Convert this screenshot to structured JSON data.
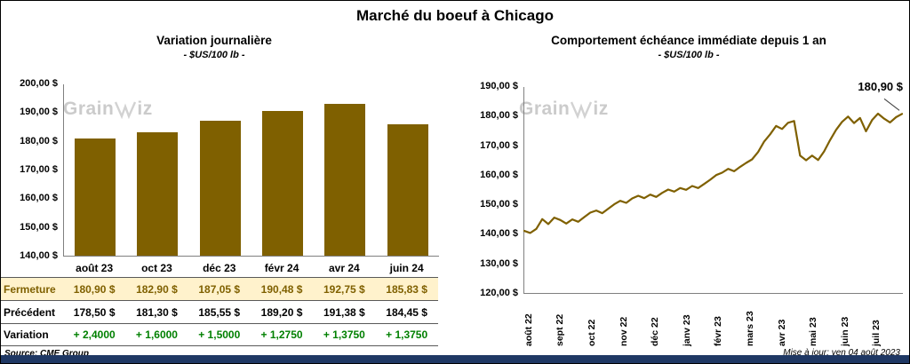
{
  "page": {
    "title": "Marché du boeuf à Chicago",
    "source": "Source: CME Group",
    "updated": "Mise à jour: ven 04 août 2023"
  },
  "watermark": {
    "prefix": "Grain",
    "suffix": "iz"
  },
  "colors": {
    "accent": "#7F6000",
    "fermeture_bg": "#FFF2CC",
    "green": "#008000",
    "band": "#1F3864"
  },
  "chart_data": [
    {
      "type": "bar",
      "title": "Variation journalière",
      "subtitle": "- $US/100 lb -",
      "categories": [
        "août 23",
        "oct 23",
        "déc 23",
        "févr 24",
        "avr 24",
        "juin 24"
      ],
      "values": [
        180.9,
        182.9,
        187.05,
        190.48,
        192.75,
        185.83
      ],
      "ylim": [
        140,
        200
      ],
      "ytick_labels": [
        "200,00 $",
        "190,00 $",
        "180,00 $",
        "170,00 $",
        "160,00 $",
        "150,00 $",
        "140,00 $"
      ],
      "legend": "none",
      "grid": false,
      "table": {
        "rows": [
          {
            "label": "Fermeture",
            "values": [
              "180,90 $",
              "182,90 $",
              "187,05 $",
              "190,48 $",
              "192,75 $",
              "185,83 $"
            ]
          },
          {
            "label": "Précédent",
            "values": [
              "178,50 $",
              "181,30 $",
              "185,55 $",
              "189,20 $",
              "191,38 $",
              "184,45 $"
            ]
          },
          {
            "label": "Variation",
            "values": [
              "+ 2,4000",
              "+ 1,6000",
              "+ 1,5000",
              "+ 1,2750",
              "+ 1,3750",
              "+ 1,3750"
            ]
          }
        ]
      }
    },
    {
      "type": "line",
      "title": "Comportement échéance immédiate depuis 1 an",
      "subtitle": "- $US/100 lb -",
      "x_labels": [
        "août 22",
        "sept 22",
        "oct 22",
        "nov 22",
        "déc 22",
        "janv 23",
        "févr 23",
        "mars 23",
        "avr 23",
        "mai 23",
        "juin 23",
        "juil 23"
      ],
      "values": [
        141.3,
        140.6,
        142.0,
        145.3,
        143.6,
        145.8,
        145.0,
        143.8,
        145.2,
        144.4,
        146.0,
        147.5,
        148.2,
        147.3,
        148.8,
        150.3,
        151.5,
        150.8,
        152.3,
        153.2,
        152.4,
        153.6,
        152.8,
        154.2,
        155.3,
        154.6,
        155.8,
        155.2,
        156.5,
        155.8,
        157.2,
        158.6,
        160.2,
        161.0,
        162.3,
        161.5,
        163.0,
        164.3,
        165.5,
        168.0,
        171.5,
        174.0,
        176.8,
        175.8,
        177.9,
        178.5,
        166.8,
        165.2,
        166.8,
        165.3,
        168.2,
        172.0,
        175.5,
        178.2,
        180.0,
        177.8,
        179.5,
        175.0,
        178.8,
        181.0,
        179.3,
        178.0,
        179.8,
        180.9
      ],
      "ylim": [
        120,
        190
      ],
      "ytick_labels": [
        "190,00 $",
        "180,00 $",
        "170,00 $",
        "160,00 $",
        "150,00 $",
        "140,00 $",
        "130,00 $",
        "120,00 $"
      ],
      "legend": "none",
      "grid": false,
      "annotation": "180,90 $"
    }
  ]
}
